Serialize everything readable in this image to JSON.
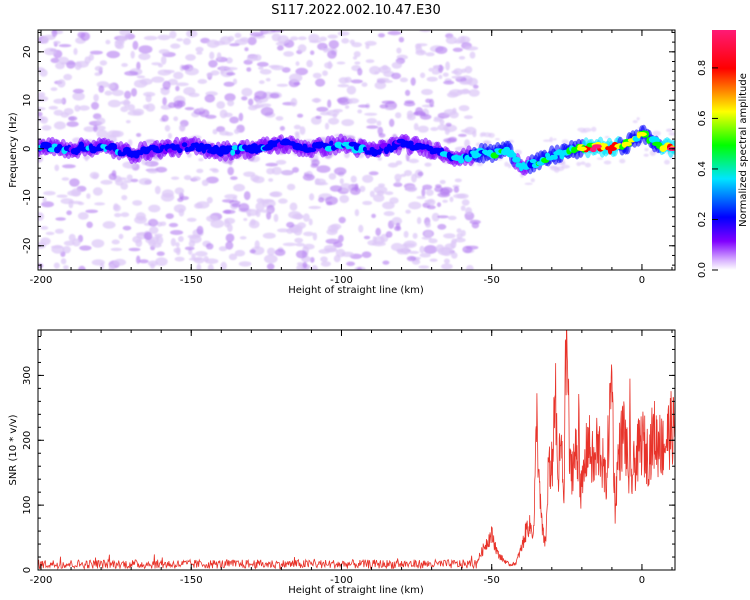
{
  "title": "S117.2022.002.10.47.E30",
  "chart_data": [
    {
      "type": "heatmap",
      "xlabel": "Height of straight line (km)",
      "ylabel": "Frequency (Hz)",
      "xlim": [
        -201,
        11
      ],
      "ylim": [
        -25,
        24.5
      ],
      "x_ticks": [
        -200,
        -150,
        -100,
        -50,
        0
      ],
      "y_ticks": [
        -20,
        -10,
        0,
        10,
        20
      ],
      "colorbar": {
        "label": "Normalized spectral amplitude",
        "range": [
          0,
          0.95
        ],
        "ticks": [
          0.0,
          0.2,
          0.4,
          0.6,
          0.8
        ],
        "colors": [
          "#ffffff",
          "#d9b3ff",
          "#8000ff",
          "#0000ff",
          "#00e5ff",
          "#00ff00",
          "#ffff00",
          "#ff0000",
          "#ff1a75"
        ]
      },
      "ridge": {
        "x": [
          -200,
          -190,
          -180,
          -170,
          -160,
          -150,
          -140,
          -130,
          -120,
          -110,
          -100,
          -90,
          -80,
          -70,
          -60,
          -55,
          -50,
          -45,
          -40,
          -35,
          -30,
          -25,
          -20,
          -15,
          -10,
          -5,
          0,
          5,
          10
        ],
        "frequency": [
          0.5,
          0,
          0.5,
          -1,
          0,
          0.5,
          -0.5,
          0,
          1,
          0,
          1,
          -0.5,
          1,
          0,
          -2,
          -1,
          -1,
          0,
          -3.5,
          -3,
          -1.5,
          -0.5,
          0,
          0.5,
          0,
          1,
          3,
          1,
          0
        ],
        "peak_amplitude": [
          0.25,
          0.2,
          0.25,
          0.2,
          0.15,
          0.2,
          0.2,
          0.25,
          0.2,
          0.2,
          0.25,
          0.2,
          0.2,
          0.2,
          0.25,
          0.35,
          0.35,
          0.35,
          0.3,
          0.35,
          0.4,
          0.4,
          0.55,
          0.95,
          0.7,
          0.5,
          0.55,
          0.45,
          0.95
        ]
      },
      "noise_region_x": [
        -201,
        -55
      ]
    },
    {
      "type": "line",
      "xlabel": "Height of straight line (km)",
      "ylabel": "SNR (10 * v/v)",
      "xlim": [
        -201,
        11
      ],
      "ylim": [
        0,
        370
      ],
      "x_ticks": [
        -200,
        -150,
        -100,
        -50,
        0
      ],
      "y_ticks": [
        0,
        100,
        200,
        300
      ],
      "color": "#e8332a",
      "baseline": {
        "x_range": [
          -201,
          -55
        ],
        "mean": 9,
        "noise": 7
      },
      "x": [
        -55,
        -52,
        -50,
        -48,
        -46,
        -44,
        -42,
        -40,
        -38,
        -36,
        -35,
        -34,
        -33,
        -32,
        -31,
        -30,
        -29,
        -28,
        -27,
        -26,
        -25,
        -24,
        -22,
        -20,
        -18,
        -16,
        -14,
        -12,
        -10,
        -9,
        -8,
        -6,
        -4,
        -2,
        0,
        2,
        4,
        6,
        8,
        10,
        11
      ],
      "y": [
        12,
        40,
        55,
        25,
        15,
        8,
        10,
        35,
        70,
        60,
        235,
        110,
        55,
        40,
        180,
        90,
        300,
        130,
        200,
        110,
        370,
        150,
        180,
        120,
        200,
        160,
        190,
        130,
        300,
        90,
        170,
        220,
        130,
        170,
        200,
        175,
        210,
        185,
        200,
        220,
        210
      ],
      "spikes": [
        {
          "x": -35,
          "y": 235
        },
        {
          "x": -30,
          "y": 215
        },
        {
          "x": -25.5,
          "y": 370
        },
        {
          "x": -21,
          "y": 295
        },
        {
          "x": -15,
          "y": 255
        },
        {
          "x": -10,
          "y": 305
        },
        {
          "x": -4,
          "y": 295
        },
        {
          "x": 6,
          "y": 260
        },
        {
          "x": 11,
          "y": 270
        }
      ]
    }
  ]
}
